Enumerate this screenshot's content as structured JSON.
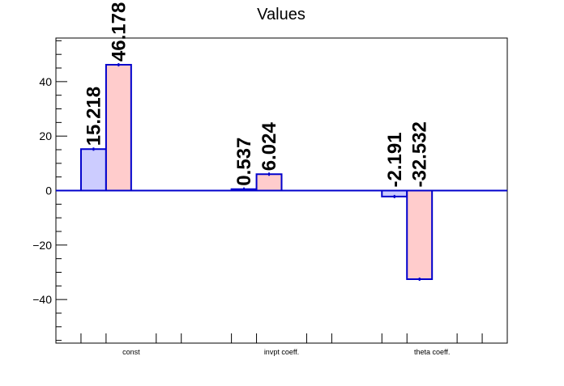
{
  "chart_data": {
    "type": "bar",
    "title": "Values",
    "xlabel": "",
    "ylabel": "",
    "categories": [
      "const",
      "invpt coeff.",
      "theta coeff."
    ],
    "series": [
      {
        "values": [
          15.218,
          0.537,
          -2.191
        ],
        "color": "#ccccff"
      },
      {
        "values": [
          46.178,
          6.024,
          -32.532
        ],
        "color": "#ffcccc"
      }
    ],
    "value_labels": [
      [
        "15.218",
        "0.537",
        "-2.191"
      ],
      [
        "46.178",
        "6.024",
        "-32.532"
      ]
    ],
    "bar_edge_color": "#0000cc",
    "ylim": [
      -56,
      56
    ],
    "yticks": [
      -40,
      -20,
      0,
      20,
      40
    ],
    "ytick_labels": [
      "−40",
      "−20",
      "0",
      "20",
      "40"
    ],
    "grid": false,
    "legend": "none"
  }
}
